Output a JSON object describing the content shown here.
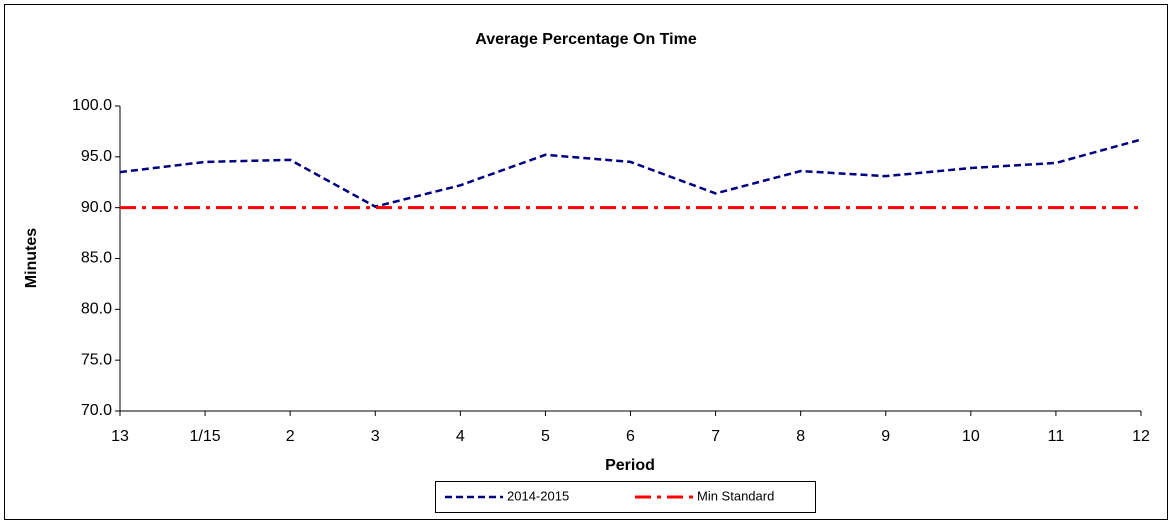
{
  "chart_data": {
    "type": "line",
    "title": "Average Percentage On Time",
    "x_label": "Period",
    "y_label": "Minutes",
    "categories": [
      "13",
      "1/15",
      "2",
      "3",
      "4",
      "5",
      "6",
      "7",
      "8",
      "9",
      "10",
      "11",
      "12"
    ],
    "series": [
      {
        "name": "2014-2015",
        "color": "#000080",
        "style": "dashed",
        "values": [
          93.5,
          94.5,
          94.7,
          90.1,
          92.2,
          95.2,
          94.5,
          91.4,
          93.6,
          93.1,
          93.9,
          94.4,
          96.7
        ]
      },
      {
        "name": "Min Standard",
        "color": "#ff0000",
        "style": "dash-dot",
        "values": [
          90,
          90,
          90,
          90,
          90,
          90,
          90,
          90,
          90,
          90,
          90,
          90,
          90
        ]
      }
    ],
    "ylim": [
      70,
      100
    ],
    "yticks": [
      {
        "value": 70,
        "label": "70.0"
      },
      {
        "value": 75,
        "label": "75.0"
      },
      {
        "value": 80,
        "label": "80.0"
      },
      {
        "value": 85,
        "label": "85.0"
      },
      {
        "value": 90,
        "label": "90.0"
      },
      {
        "value": 95,
        "label": "95.0"
      },
      {
        "value": 100,
        "label": "100.0"
      }
    ],
    "grid": false,
    "legend": "bottom"
  }
}
